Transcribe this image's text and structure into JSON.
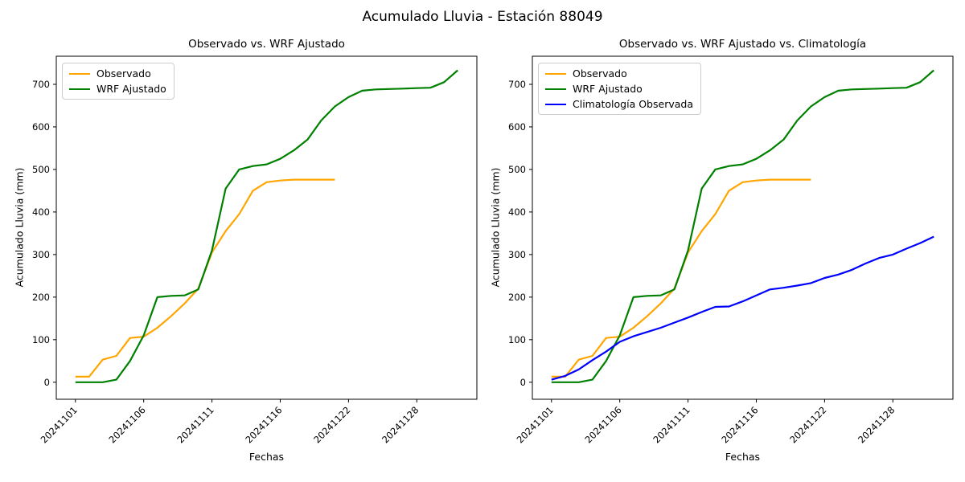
{
  "figure": {
    "title": "Acumulado Lluvia - Estación 88049",
    "background_color": "#ffffff",
    "text_color": "#000000"
  },
  "chart_data": [
    {
      "type": "line",
      "title": "Observado vs. WRF Ajustado",
      "xlabel": "Fechas",
      "ylabel": "Acumulado Lluvia (mm)",
      "xlim_index": [
        -1.4,
        29.4
      ],
      "ylim": [
        -40,
        766
      ],
      "grid": false,
      "legend_position": "upper left",
      "yticks": [
        0,
        100,
        200,
        300,
        400,
        500,
        600,
        700
      ],
      "xticks": {
        "positions": [
          0,
          5,
          10,
          15,
          20,
          25
        ],
        "labels": [
          "20241101",
          "20241106",
          "20241111",
          "20241116",
          "20241122",
          "20241128"
        ],
        "rotation_deg": 45
      },
      "series": [
        {
          "name": "Observado",
          "color": "#FFA500",
          "start_index": 0,
          "values": [
            13,
            13,
            53,
            62,
            104,
            107,
            128,
            155,
            185,
            220,
            305,
            355,
            395,
            450,
            470,
            474,
            476,
            476,
            476,
            476
          ]
        },
        {
          "name": "WRF Ajustado",
          "color": "#008000",
          "start_index": 0,
          "values": [
            0,
            0,
            0,
            6,
            50,
            110,
            200,
            203,
            204,
            218,
            310,
            455,
            500,
            508,
            512,
            525,
            545,
            570,
            615,
            648,
            670,
            685,
            688,
            689,
            690,
            691,
            692,
            705,
            733
          ]
        }
      ]
    },
    {
      "type": "line",
      "title": "Observado vs. WRF Ajustado vs. Climatología",
      "xlabel": "Fechas",
      "ylabel": "Acumulado Lluvia (mm)",
      "xlim_index": [
        -1.4,
        29.4
      ],
      "ylim": [
        -40,
        766
      ],
      "grid": false,
      "legend_position": "upper left",
      "yticks": [
        0,
        100,
        200,
        300,
        400,
        500,
        600,
        700
      ],
      "xticks": {
        "positions": [
          0,
          5,
          10,
          15,
          20,
          25
        ],
        "labels": [
          "20241101",
          "20241106",
          "20241111",
          "20241116",
          "20241122",
          "20241128"
        ],
        "rotation_deg": 45
      },
      "series": [
        {
          "name": "Observado",
          "color": "#FFA500",
          "start_index": 0,
          "values": [
            13,
            13,
            53,
            62,
            104,
            107,
            128,
            155,
            185,
            220,
            305,
            355,
            395,
            450,
            470,
            474,
            476,
            476,
            476,
            476
          ]
        },
        {
          "name": "WRF Ajustado",
          "color": "#008000",
          "start_index": 0,
          "values": [
            0,
            0,
            0,
            6,
            50,
            110,
            200,
            203,
            204,
            218,
            310,
            455,
            500,
            508,
            512,
            525,
            545,
            570,
            615,
            648,
            670,
            685,
            688,
            689,
            690,
            691,
            692,
            705,
            733
          ]
        },
        {
          "name": "Climatología Observada",
          "color": "#0000FF",
          "start_index": 0,
          "values": [
            6,
            15,
            30,
            52,
            72,
            95,
            108,
            118,
            128,
            140,
            152,
            165,
            177,
            178,
            190,
            204,
            218,
            222,
            227,
            233,
            245,
            253,
            264,
            279,
            292,
            300,
            314,
            327,
            342
          ]
        }
      ]
    }
  ]
}
